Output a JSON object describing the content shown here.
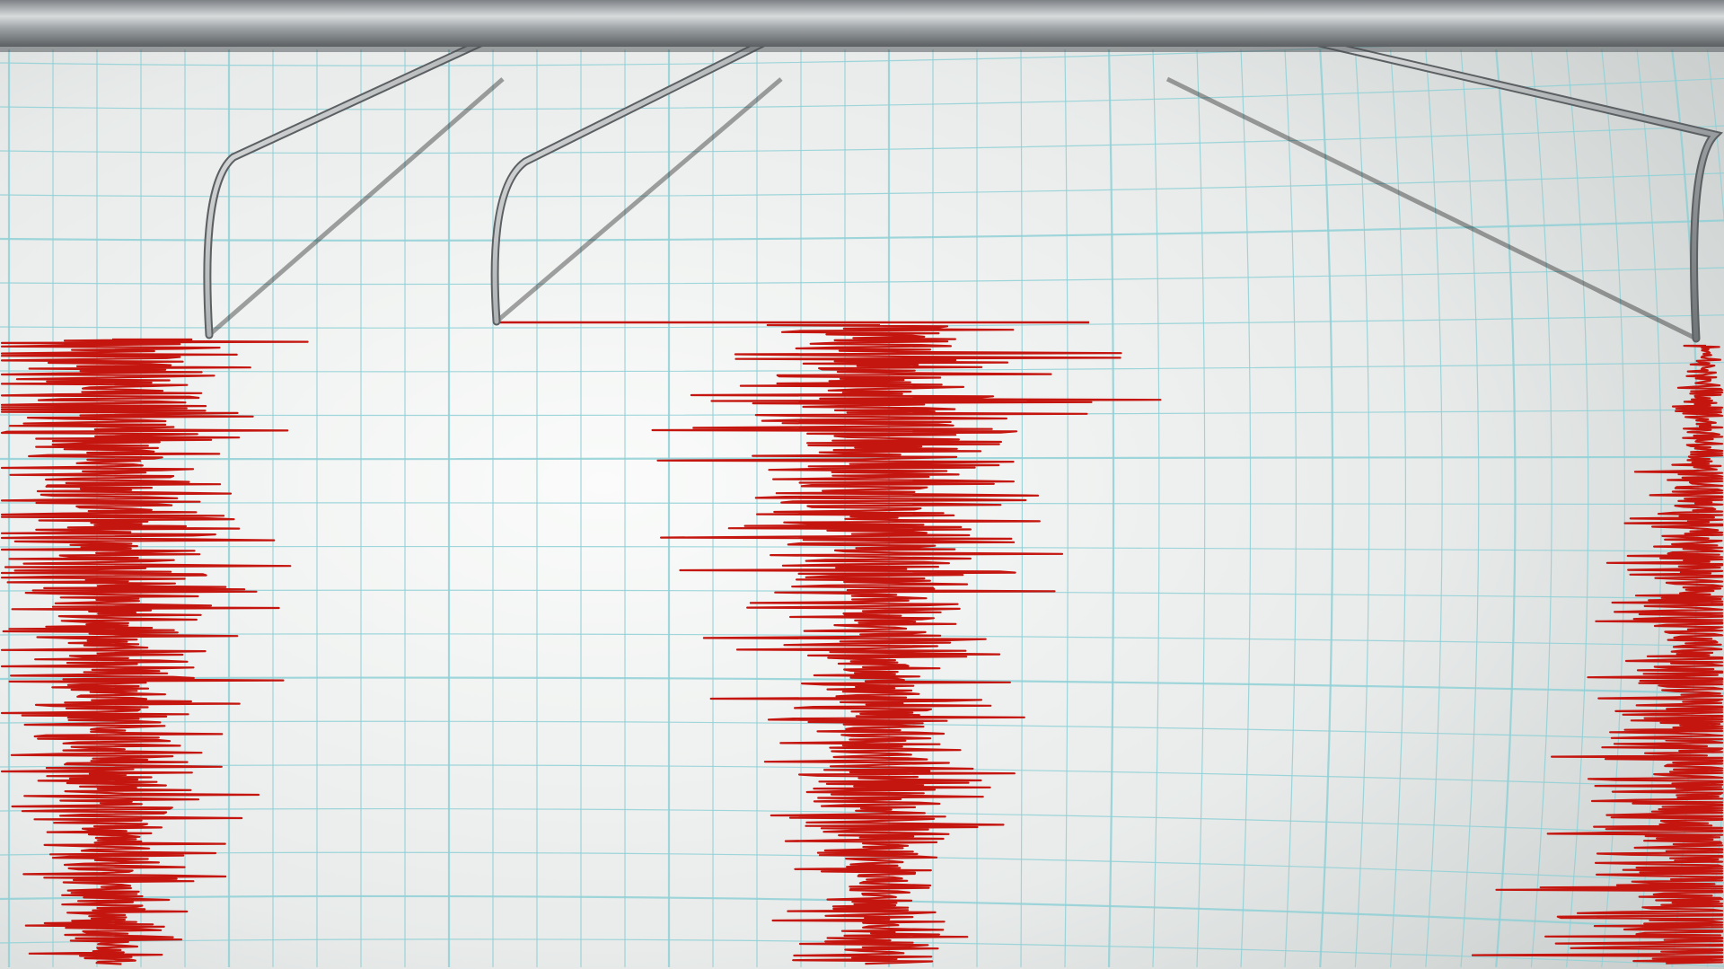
{
  "scene": {
    "subject": "seismograph",
    "colors": {
      "paper": "#eef0ef",
      "grid": "#8fd0d6",
      "trace": "#c4150f",
      "metal_light": "#d9dcdd",
      "metal_dark": "#5c6063",
      "rail": "#9a9fa2"
    },
    "needles": 3,
    "traces": 3
  }
}
